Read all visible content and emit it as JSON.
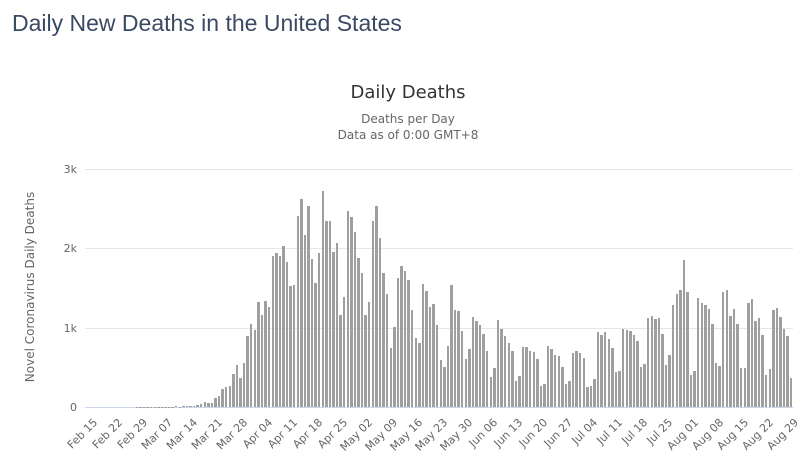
{
  "page": {
    "title": "Daily New Deaths in the United States"
  },
  "chart": {
    "title": "Daily Deaths",
    "subtitle_line1": "Deaths per Day",
    "subtitle_line2": "Data as of 0:00 GMT+8",
    "y_axis_title": "Novel Coronavirus Daily Deaths"
  },
  "colors": {
    "page_title": "#3a4a63",
    "chart_title": "#333333",
    "subtitle": "#666666",
    "axis_label": "#666666",
    "bar": "#9f9f9f",
    "gridline": "#e6e6e6",
    "axis_line": "#ccd6eb"
  },
  "chart_data": {
    "type": "bar",
    "title": "Daily Deaths",
    "subtitle": "Deaths per Day — Data as of 0:00 GMT+8",
    "xlabel": "",
    "ylabel": "Novel Coronavirus Daily Deaths",
    "ylim": [
      0,
      3000
    ],
    "grid": "horizontal",
    "legend": "off",
    "y_ticks": [
      [
        0,
        "0"
      ],
      [
        1000,
        "1k"
      ],
      [
        2000,
        "2k"
      ],
      [
        3000,
        "3k"
      ]
    ],
    "x_tick_interval_days": 7,
    "x_tick_labels": [
      "Feb 15",
      "Feb 22",
      "Feb 29",
      "Mar 07",
      "Mar 14",
      "Mar 21",
      "Mar 28",
      "Apr 04",
      "Apr 11",
      "Apr 18",
      "Apr 25",
      "May 02",
      "May 09",
      "May 16",
      "May 23",
      "May 30",
      "Jun 06",
      "Jun 13",
      "Jun 20",
      "Jun 27",
      "Jul 04",
      "Jul 11",
      "Jul 18",
      "Jul 25",
      "Aug 01",
      "Aug 08",
      "Aug 15",
      "Aug 22",
      "Aug 29"
    ],
    "dates": [
      "Feb 15",
      "Feb 16",
      "Feb 17",
      "Feb 18",
      "Feb 19",
      "Feb 20",
      "Feb 21",
      "Feb 22",
      "Feb 23",
      "Feb 24",
      "Feb 25",
      "Feb 26",
      "Feb 27",
      "Feb 28",
      "Feb 29",
      "Mar 01",
      "Mar 02",
      "Mar 03",
      "Mar 04",
      "Mar 05",
      "Mar 06",
      "Mar 07",
      "Mar 08",
      "Mar 09",
      "Mar 10",
      "Mar 11",
      "Mar 12",
      "Mar 13",
      "Mar 14",
      "Mar 15",
      "Mar 16",
      "Mar 17",
      "Mar 18",
      "Mar 19",
      "Mar 20",
      "Mar 21",
      "Mar 22",
      "Mar 23",
      "Mar 24",
      "Mar 25",
      "Mar 26",
      "Mar 27",
      "Mar 28",
      "Mar 29",
      "Mar 30",
      "Mar 31",
      "Apr 01",
      "Apr 02",
      "Apr 03",
      "Apr 04",
      "Apr 05",
      "Apr 06",
      "Apr 07",
      "Apr 08",
      "Apr 09",
      "Apr 10",
      "Apr 11",
      "Apr 12",
      "Apr 13",
      "Apr 14",
      "Apr 15",
      "Apr 16",
      "Apr 17",
      "Apr 18",
      "Apr 19",
      "Apr 20",
      "Apr 21",
      "Apr 22",
      "Apr 23",
      "Apr 24",
      "Apr 25",
      "Apr 26",
      "Apr 27",
      "Apr 28",
      "Apr 29",
      "Apr 30",
      "May 01",
      "May 02",
      "May 03",
      "May 04",
      "May 05",
      "May 06",
      "May 07",
      "May 08",
      "May 09",
      "May 10",
      "May 11",
      "May 12",
      "May 13",
      "May 14",
      "May 15",
      "May 16",
      "May 17",
      "May 18",
      "May 19",
      "May 20",
      "May 21",
      "May 22",
      "May 23",
      "May 24",
      "May 25",
      "May 26",
      "May 27",
      "May 28",
      "May 29",
      "May 30",
      "May 31",
      "Jun 01",
      "Jun 02",
      "Jun 03",
      "Jun 04",
      "Jun 05",
      "Jun 06",
      "Jun 07",
      "Jun 08",
      "Jun 09",
      "Jun 10",
      "Jun 11",
      "Jun 12",
      "Jun 13",
      "Jun 14",
      "Jun 15",
      "Jun 16",
      "Jun 17",
      "Jun 18",
      "Jun 19",
      "Jun 20",
      "Jun 21",
      "Jun 22",
      "Jun 23",
      "Jun 24",
      "Jun 25",
      "Jun 26",
      "Jun 27",
      "Jun 28",
      "Jun 29",
      "Jun 30",
      "Jul 01",
      "Jul 02",
      "Jul 03",
      "Jul 04",
      "Jul 05",
      "Jul 06",
      "Jul 07",
      "Jul 08",
      "Jul 09",
      "Jul 10",
      "Jul 11",
      "Jul 12",
      "Jul 13",
      "Jul 14",
      "Jul 15",
      "Jul 16",
      "Jul 17",
      "Jul 18",
      "Jul 19",
      "Jul 20",
      "Jul 21",
      "Jul 22",
      "Jul 23",
      "Jul 24",
      "Jul 25",
      "Jul 26",
      "Jul 27",
      "Jul 28",
      "Jul 29",
      "Jul 30",
      "Jul 31",
      "Aug 01",
      "Aug 02",
      "Aug 03",
      "Aug 04",
      "Aug 05",
      "Aug 06",
      "Aug 07",
      "Aug 08",
      "Aug 09",
      "Aug 10",
      "Aug 11",
      "Aug 12",
      "Aug 13",
      "Aug 14",
      "Aug 15",
      "Aug 16",
      "Aug 17",
      "Aug 18",
      "Aug 19",
      "Aug 20",
      "Aug 21",
      "Aug 22",
      "Aug 23",
      "Aug 24",
      "Aug 25",
      "Aug 26",
      "Aug 27",
      "Aug 28",
      "Aug 29",
      "Aug 30"
    ],
    "values": [
      0,
      0,
      0,
      0,
      0,
      0,
      0,
      0,
      0,
      0,
      0,
      0,
      0,
      0,
      1,
      1,
      5,
      3,
      2,
      1,
      3,
      4,
      3,
      4,
      4,
      8,
      3,
      8,
      11,
      11,
      18,
      23,
      41,
      57,
      49,
      46,
      111,
      140,
      225,
      247,
      268,
      411,
      525,
      363,
      558,
      895,
      1049,
      968,
      1321,
      1165,
      1342,
      1255,
      1906,
      1940,
      1900,
      2035,
      1830,
      1528,
      1535,
      2407,
      2621,
      2174,
      2538,
      1867,
      1561,
      1939,
      2724,
      2341,
      2341,
      1956,
      2065,
      1157,
      1384,
      2470,
      2390,
      2201,
      1883,
      1691,
      1154,
      1324,
      2350,
      2528,
      2129,
      1687,
      1422,
      750,
      1008,
      1630,
      1772,
      1715,
      1595,
      1218,
      865,
      808,
      1552,
      1461,
      1263,
      1294,
      1036,
      592,
      505,
      774,
      1535,
      1223,
      1212,
      960,
      605,
      730,
      1134,
      1083,
      1031,
      921,
      709,
      373,
      497,
      1093,
      984,
      895,
      802,
      712,
      331,
      389,
      757,
      760,
      712,
      691,
      603,
      267,
      294,
      768,
      728,
      650,
      644,
      510,
      287,
      334,
      676,
      706,
      678,
      622,
      257,
      269,
      352,
      950,
      902,
      949,
      852,
      745,
      437,
      450,
      981,
      974,
      960,
      914,
      835,
      510,
      539,
      1117,
      1151,
      1113,
      1122,
      920,
      532,
      651,
      1290,
      1430,
      1480,
      1851,
      1450,
      400,
      450,
      1370,
      1310,
      1290,
      1230,
      1050,
      550,
      520,
      1450,
      1471,
      1150,
      1241,
      1050,
      486,
      486,
      1317,
      1356,
      1082,
      1116,
      903,
      406,
      476,
      1222,
      1253,
      1134,
      983,
      901,
      363
    ],
    "bar_color": "#9f9f9f"
  }
}
